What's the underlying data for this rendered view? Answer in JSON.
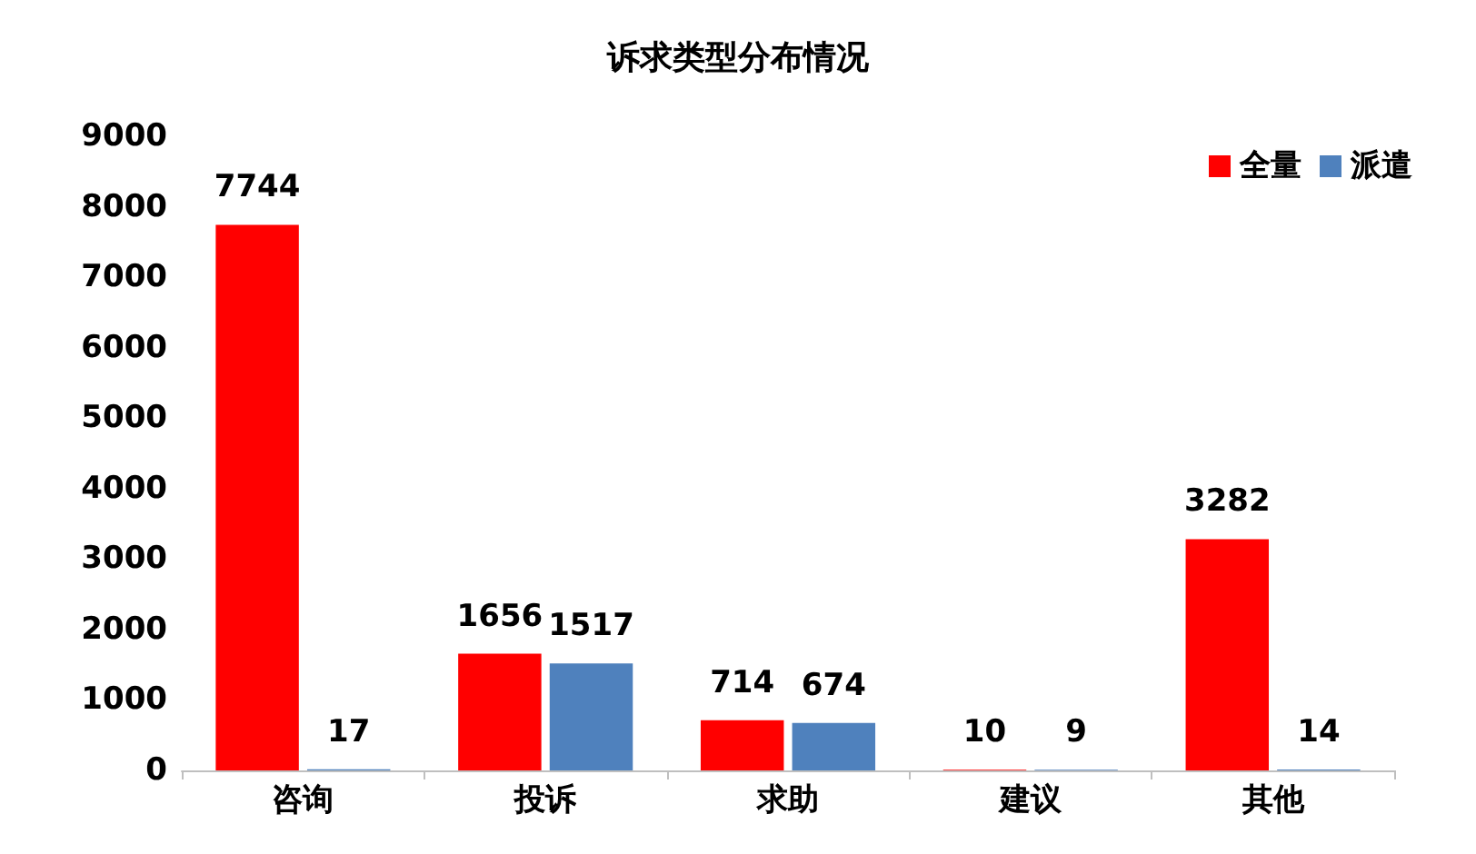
{
  "chart_data": {
    "type": "bar",
    "title": "诉求类型分布情况",
    "categories": [
      "咨询",
      "投诉",
      "求助",
      "建议",
      "其他"
    ],
    "series": [
      {
        "name": "全量",
        "color": "#ff0000",
        "values": [
          7744,
          1656,
          714,
          10,
          3282
        ]
      },
      {
        "name": "派遣",
        "color": "#4f81bd",
        "values": [
          17,
          1517,
          674,
          9,
          14
        ]
      }
    ],
    "ylim": [
      0,
      9000
    ],
    "yticks": [
      0,
      1000,
      2000,
      3000,
      4000,
      5000,
      6000,
      7000,
      8000,
      9000
    ],
    "grid": false,
    "legend": "top right",
    "data_labels": true
  }
}
